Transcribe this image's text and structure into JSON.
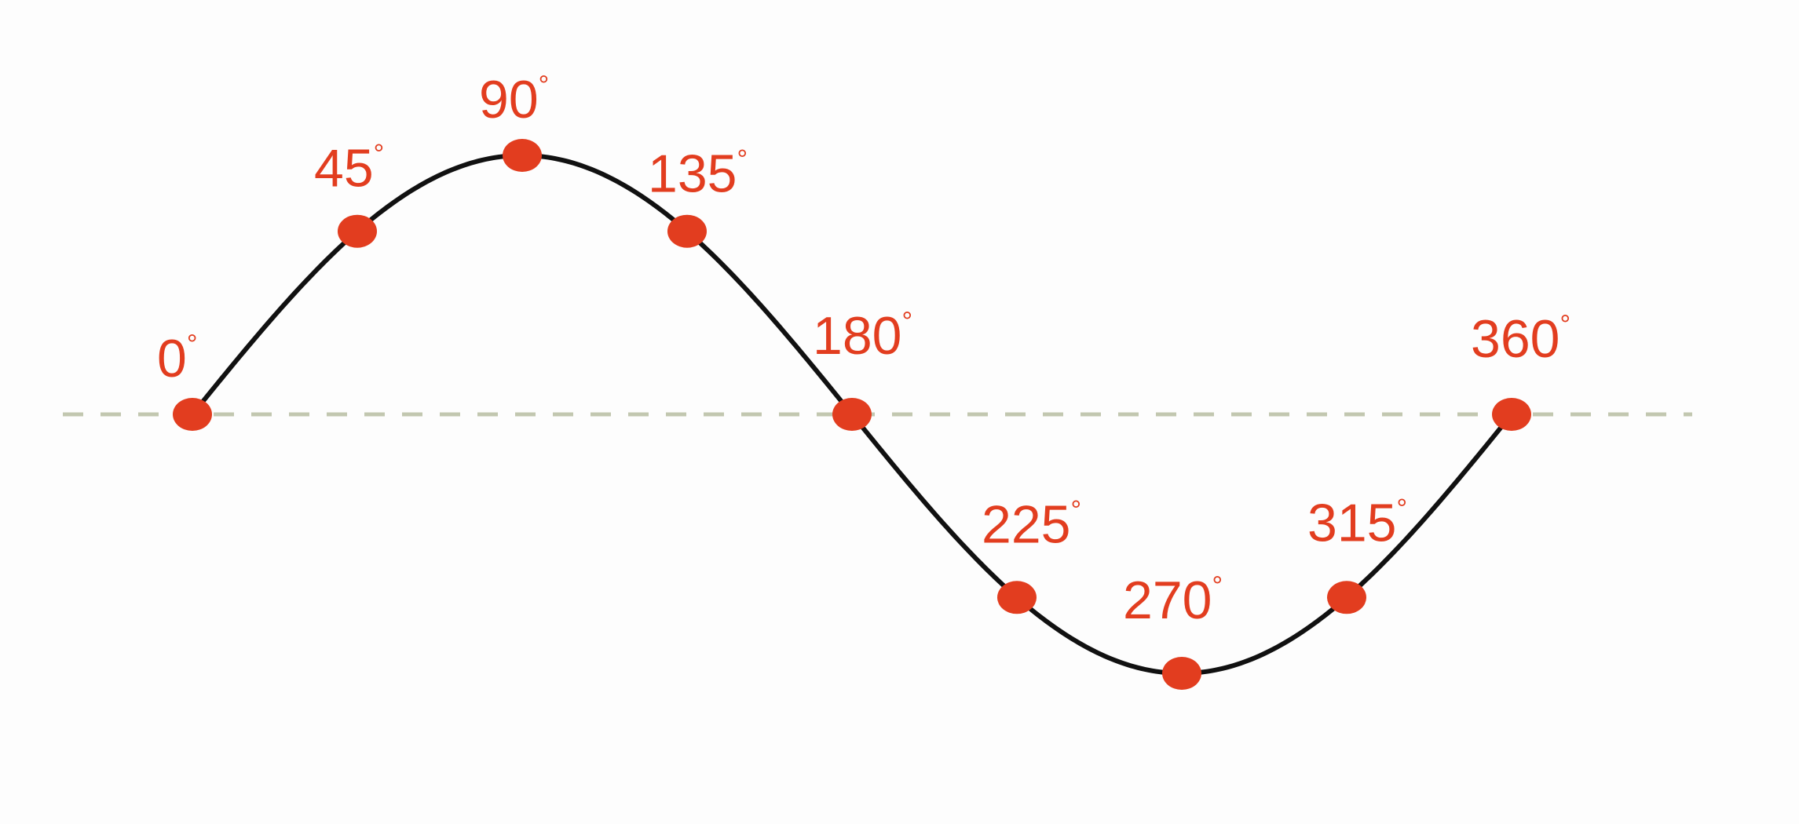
{
  "chart_data": {
    "type": "line",
    "function": "sine",
    "x": [
      0,
      45,
      90,
      135,
      180,
      225,
      270,
      315,
      360
    ],
    "y": [
      0,
      0.707,
      1,
      0.707,
      0,
      -0.707,
      -1,
      -0.707,
      0
    ],
    "xlim": [
      0,
      360
    ],
    "ylim": [
      -1,
      1
    ],
    "points": [
      {
        "angle": 0,
        "label": "0",
        "degree_mark": "°"
      },
      {
        "angle": 45,
        "label": "45",
        "degree_mark": "°"
      },
      {
        "angle": 90,
        "label": "90",
        "degree_mark": "°"
      },
      {
        "angle": 135,
        "label": "135",
        "degree_mark": "°"
      },
      {
        "angle": 180,
        "label": "180",
        "degree_mark": "°"
      },
      {
        "angle": 225,
        "label": "225",
        "degree_mark": "°"
      },
      {
        "angle": 270,
        "label": "270",
        "degree_mark": "°"
      },
      {
        "angle": 315,
        "label": "315",
        "degree_mark": "°"
      },
      {
        "angle": 360,
        "label": "360",
        "degree_mark": "°"
      }
    ],
    "axis": {
      "style": "dashed",
      "color": "#c2c7b0"
    },
    "curve_color": "#111111",
    "point_color": "#e23d1f",
    "label_color": "#e23d1f",
    "title": "",
    "xlabel": "",
    "ylabel": "",
    "legend": "none",
    "grid": false
  }
}
